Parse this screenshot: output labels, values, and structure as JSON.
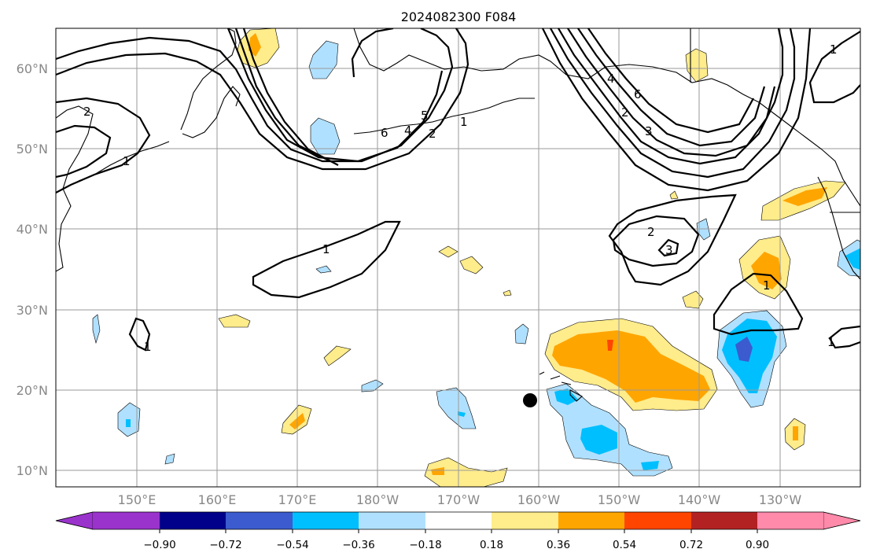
{
  "title": "2024082300 F084",
  "map": {
    "lat_labels": [
      "60°N",
      "50°N",
      "40°N",
      "30°N",
      "20°N",
      "10°N"
    ],
    "lon_labels": [
      "150°E",
      "160°E",
      "170°E",
      "180°W",
      "170°W",
      "160°W",
      "150°W",
      "140°W",
      "130°W"
    ],
    "contour_labels": [
      "2",
      "1",
      "6",
      "4",
      "5",
      "2",
      "1",
      "6",
      "4",
      "2",
      "3",
      "2",
      "3",
      "1",
      "1",
      "1",
      "1",
      "1"
    ],
    "marker": "storm-center-dot"
  },
  "colorbar": {
    "colors": [
      "#9a33cc",
      "#00008b",
      "#3b5bcf",
      "#00bfff",
      "#b0e0ff",
      "#ffffff",
      "#ffec8b",
      "#ffa500",
      "#ff4500",
      "#b22222",
      "#ff8aaa"
    ],
    "tick_labels": [
      "−0.90",
      "−0.72",
      "−0.54",
      "−0.36",
      "−0.18",
      "0.18",
      "0.36",
      "0.54",
      "0.72",
      "0.90"
    ]
  }
}
